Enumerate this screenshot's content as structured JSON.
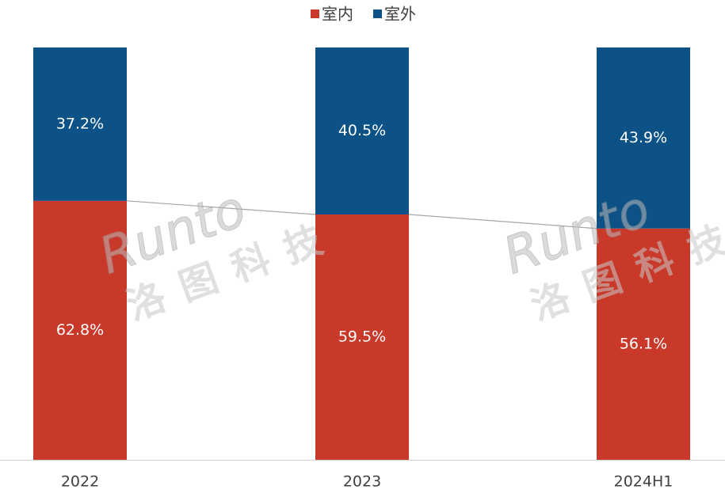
{
  "chart_data": {
    "type": "stacked_bar_100",
    "categories": [
      "2022",
      "2023",
      "2024H1"
    ],
    "series": [
      {
        "name": "室内",
        "color": "#c9392a",
        "values": [
          62.8,
          59.5,
          56.1
        ],
        "value_labels": [
          "62.8%",
          "59.5%",
          "56.1%"
        ]
      },
      {
        "name": "室外",
        "color": "#0c5286",
        "values": [
          37.2,
          40.5,
          43.9
        ],
        "value_labels": [
          "37.2%",
          "40.5%",
          "43.9%"
        ]
      }
    ],
    "ylim": [
      0,
      100
    ],
    "legend": "top",
    "watermark": [
      "Runto",
      "洛图科技"
    ]
  }
}
